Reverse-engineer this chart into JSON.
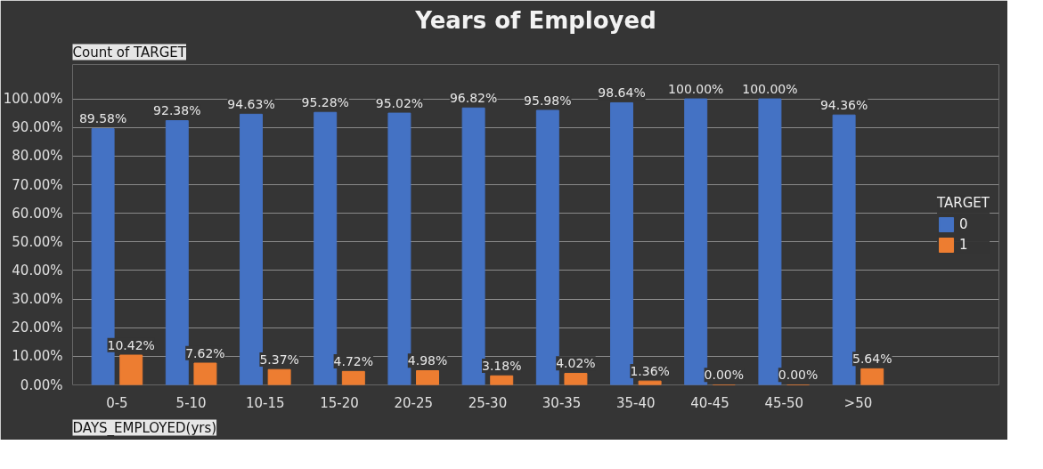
{
  "chart_data": {
    "type": "bar",
    "title": "Years of Employed",
    "xlabel": "DAYS_EMPLOYED(yrs)",
    "legend_title": "TARGET",
    "annotations": [
      "Count of TARGET"
    ],
    "categories": [
      "0-5",
      "5-10",
      "10-15",
      "15-20",
      "20-25",
      "25-30",
      "30-35",
      "35-40",
      "40-45",
      "45-50",
      ">50"
    ],
    "series": [
      {
        "name": "0",
        "color": "#4472c4",
        "values": [
          89.58,
          92.38,
          94.63,
          95.28,
          95.02,
          96.82,
          95.98,
          98.64,
          100,
          100,
          94.36
        ],
        "value_labels": [
          "89.58%",
          "92.38%",
          "94.63%",
          "95.28%",
          "95.02%",
          "96.82%",
          "95.98%",
          "98.64%",
          "100.00%",
          "100.00%",
          "94.36%"
        ]
      },
      {
        "name": "1",
        "color": "#ed7d31",
        "values": [
          10.42,
          7.62,
          5.37,
          4.72,
          4.98,
          3.18,
          4.02,
          1.36,
          0,
          0,
          5.64
        ],
        "value_labels": [
          "10.42%",
          "7.62%",
          "5.37%",
          "4.72%",
          "4.98%",
          "3.18%",
          "4.02%",
          "1.36%",
          "0.00%",
          "0.00%",
          "5.64%"
        ]
      }
    ],
    "ylim": [
      0,
      100
    ],
    "yticks": [
      {
        "value": 0,
        "label": "0.00%"
      },
      {
        "value": 10,
        "label": "10.00%"
      },
      {
        "value": 20,
        "label": "20.00%"
      },
      {
        "value": 30,
        "label": "30.00%"
      },
      {
        "value": 40,
        "label": "40.00%"
      },
      {
        "value": 50,
        "label": "50.00%"
      },
      {
        "value": 60,
        "label": "60.00%"
      },
      {
        "value": 70,
        "label": "70.00%"
      },
      {
        "value": 80,
        "label": "80.00%"
      },
      {
        "value": 90,
        "label": "90.00%"
      },
      {
        "value": 100,
        "label": "100.00%"
      }
    ],
    "grid": "y",
    "legend": "right"
  }
}
